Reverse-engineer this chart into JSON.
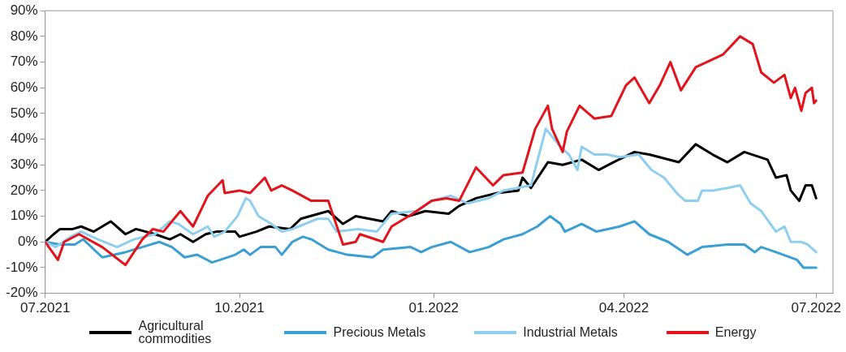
{
  "chart_data": {
    "type": "line",
    "legend": "bottom",
    "grid": false,
    "marker": "none",
    "line_style": "solid",
    "xlim": [
      "2021-07-01",
      "2022-07-09"
    ],
    "xticks": [
      {
        "value": "2021-07-01",
        "label": "07.2021"
      },
      {
        "value": "2021-10-01",
        "label": "10.2021"
      },
      {
        "value": "2022-01-01",
        "label": "01.2022"
      },
      {
        "value": "2022-04-01",
        "label": "04.2022"
      },
      {
        "value": "2022-07-01",
        "label": "07.2022"
      }
    ],
    "ylim": [
      -20,
      90
    ],
    "yticks": [
      {
        "value": -20,
        "label": "-20%"
      },
      {
        "value": -10,
        "label": "-10%"
      },
      {
        "value": 0,
        "label": "0%"
      },
      {
        "value": 10,
        "label": "10%"
      },
      {
        "value": 20,
        "label": "20%"
      },
      {
        "value": 30,
        "label": "30%"
      },
      {
        "value": 40,
        "label": "40%"
      },
      {
        "value": 50,
        "label": "50%"
      },
      {
        "value": 60,
        "label": "60%"
      },
      {
        "value": 70,
        "label": "70%"
      },
      {
        "value": 80,
        "label": "80%"
      },
      {
        "value": 90,
        "label": "90%"
      }
    ],
    "series": [
      {
        "name": "Agricultural commodities",
        "color": "#000000",
        "x": [
          "2021-07-01",
          "2021-07-05",
          "2021-07-08",
          "2021-07-14",
          "2021-07-18",
          "2021-07-24",
          "2021-08-01",
          "2021-08-08",
          "2021-08-13",
          "2021-08-22",
          "2021-08-29",
          "2021-09-03",
          "2021-09-09",
          "2021-09-15",
          "2021-09-20",
          "2021-09-29",
          "2021-10-01",
          "2021-10-09",
          "2021-10-15",
          "2021-10-25",
          "2021-10-30",
          "2021-11-12",
          "2021-11-19",
          "2021-11-25",
          "2021-12-08",
          "2021-12-12",
          "2021-12-20",
          "2021-12-28",
          "2022-01-08",
          "2022-01-13",
          "2022-01-21",
          "2022-01-31",
          "2022-02-10",
          "2022-02-12",
          "2022-02-16",
          "2022-02-24",
          "2022-03-03",
          "2022-03-12",
          "2022-03-20",
          "2022-03-27",
          "2022-04-06",
          "2022-04-13",
          "2022-04-27",
          "2022-05-05",
          "2022-05-13",
          "2022-05-20",
          "2022-05-28",
          "2022-06-08",
          "2022-06-12",
          "2022-06-17",
          "2022-06-19",
          "2022-06-23",
          "2022-06-26",
          "2022-06-29",
          "2022-07-01"
        ],
        "values": [
          0,
          3,
          5,
          5,
          6,
          4,
          8,
          3,
          5,
          3,
          1,
          3,
          0,
          3,
          4,
          4,
          2,
          4,
          6,
          5,
          9,
          12,
          7,
          10,
          8,
          12,
          10,
          12,
          11,
          14,
          17,
          19,
          20,
          25,
          21,
          31,
          30,
          32,
          28,
          31,
          35,
          34,
          31,
          38,
          34,
          31,
          35,
          32,
          25,
          26,
          20,
          16,
          22,
          22,
          17
        ]
      },
      {
        "name": "Precious Metals",
        "color": "#3a9fd3",
        "x": [
          "2021-07-01",
          "2021-07-08",
          "2021-07-15",
          "2021-07-19",
          "2021-07-28",
          "2021-08-08",
          "2021-08-16",
          "2021-08-24",
          "2021-08-30",
          "2021-09-05",
          "2021-09-11",
          "2021-09-18",
          "2021-09-29",
          "2021-10-03",
          "2021-10-06",
          "2021-10-11",
          "2021-10-18",
          "2021-10-21",
          "2021-10-26",
          "2021-10-31",
          "2021-11-04",
          "2021-11-12",
          "2021-11-21",
          "2021-12-03",
          "2021-12-08",
          "2021-12-21",
          "2021-12-26",
          "2021-12-31",
          "2022-01-09",
          "2022-01-18",
          "2022-01-27",
          "2022-02-03",
          "2022-02-12",
          "2022-02-19",
          "2022-02-25",
          "2022-03-02",
          "2022-03-04",
          "2022-03-12",
          "2022-03-19",
          "2022-03-30",
          "2022-04-06",
          "2022-04-13",
          "2022-04-22",
          "2022-05-01",
          "2022-05-08",
          "2022-05-20",
          "2022-05-28",
          "2022-06-02",
          "2022-06-05",
          "2022-06-12",
          "2022-06-22",
          "2022-06-25",
          "2022-07-01"
        ],
        "values": [
          0,
          -1,
          -1,
          1,
          -6,
          -4,
          -2,
          0,
          -2,
          -6,
          -5,
          -8,
          -5,
          -3,
          -5,
          -2,
          -2,
          -5,
          0,
          2,
          1,
          -3,
          -5,
          -6,
          -3,
          -2,
          -4,
          -2,
          0,
          -4,
          -2,
          1,
          3,
          6,
          10,
          7,
          4,
          7,
          4,
          6,
          8,
          3,
          0,
          -5,
          -2,
          -1,
          -1,
          -4,
          -2,
          -4,
          -7,
          -10,
          -10
        ]
      },
      {
        "name": "Industrial Metals",
        "color": "#8ecff0",
        "x": [
          "2021-07-01",
          "2021-07-06",
          "2021-07-13",
          "2021-07-18",
          "2021-07-26",
          "2021-08-04",
          "2021-08-12",
          "2021-08-22",
          "2021-08-29",
          "2021-09-02",
          "2021-09-09",
          "2021-09-16",
          "2021-09-19",
          "2021-09-24",
          "2021-09-30",
          "2021-10-04",
          "2021-10-06",
          "2021-10-10",
          "2021-10-16",
          "2021-10-21",
          "2021-10-26",
          "2021-11-07",
          "2021-11-12",
          "2021-11-16",
          "2021-11-26",
          "2021-12-05",
          "2021-12-12",
          "2021-12-24",
          "2021-12-31",
          "2022-01-09",
          "2022-01-17",
          "2022-01-27",
          "2022-02-03",
          "2022-02-16",
          "2022-02-23",
          "2022-02-26",
          "2022-03-02",
          "2022-03-06",
          "2022-03-10",
          "2022-03-12",
          "2022-03-18",
          "2022-03-24",
          "2022-03-30",
          "2022-04-08",
          "2022-04-14",
          "2022-04-20",
          "2022-04-26",
          "2022-04-30",
          "2022-05-06",
          "2022-05-08",
          "2022-05-13",
          "2022-05-20",
          "2022-05-26",
          "2022-05-31",
          "2022-06-05",
          "2022-06-12",
          "2022-06-16",
          "2022-06-19",
          "2022-06-24",
          "2022-06-27",
          "2022-07-01"
        ],
        "values": [
          0,
          -2,
          2,
          4,
          1,
          -2,
          1,
          3,
          8,
          7,
          3,
          6,
          2,
          4,
          10,
          17,
          16,
          10,
          7,
          4,
          5,
          9,
          9,
          4,
          5,
          4,
          11,
          12,
          16,
          18,
          15,
          17,
          20,
          22,
          44,
          41,
          37,
          34,
          28,
          37,
          34,
          34,
          33,
          34,
          28,
          25,
          19,
          16,
          16,
          20,
          20,
          21,
          22,
          15,
          12,
          4,
          6,
          0,
          0,
          -1,
          -4
        ]
      },
      {
        "name": "Energy",
        "color": "#e1141c",
        "x": [
          "2021-07-01",
          "2021-07-07",
          "2021-07-10",
          "2021-07-17",
          "2021-07-28",
          "2021-08-08",
          "2021-08-16",
          "2021-08-21",
          "2021-08-26",
          "2021-09-03",
          "2021-09-09",
          "2021-09-16",
          "2021-09-23",
          "2021-09-24",
          "2021-10-01",
          "2021-10-06",
          "2021-10-13",
          "2021-10-16",
          "2021-10-21",
          "2021-10-26",
          "2021-11-04",
          "2021-11-12",
          "2021-11-19",
          "2021-11-25",
          "2021-11-27",
          "2021-12-08",
          "2021-12-12",
          "2021-12-22",
          "2021-12-31",
          "2022-01-07",
          "2022-01-13",
          "2022-01-21",
          "2022-01-29",
          "2022-02-03",
          "2022-02-12",
          "2022-02-18",
          "2022-02-24",
          "2022-02-26",
          "2022-03-03",
          "2022-03-05",
          "2022-03-11",
          "2022-03-18",
          "2022-03-26",
          "2022-04-02",
          "2022-04-06",
          "2022-04-13",
          "2022-04-18",
          "2022-04-23",
          "2022-04-28",
          "2022-05-05",
          "2022-05-18",
          "2022-05-26",
          "2022-06-01",
          "2022-06-05",
          "2022-06-11",
          "2022-06-16",
          "2022-06-19",
          "2022-06-21",
          "2022-06-24",
          "2022-06-26",
          "2022-06-29",
          "2022-06-30",
          "2022-07-01"
        ],
        "values": [
          0,
          -7,
          0,
          3,
          -2,
          -9,
          1,
          5,
          4,
          12,
          6,
          18,
          24,
          19,
          20,
          19,
          25,
          20,
          22,
          20,
          16,
          16,
          -1,
          0,
          3,
          0,
          6,
          11,
          16,
          17,
          16,
          29,
          22,
          26,
          27,
          44,
          53,
          44,
          35,
          43,
          53,
          48,
          49,
          61,
          64,
          54,
          61,
          70,
          59,
          68,
          73,
          80,
          77,
          66,
          62,
          65,
          56,
          60,
          51,
          58,
          60,
          54,
          55
        ]
      }
    ]
  }
}
